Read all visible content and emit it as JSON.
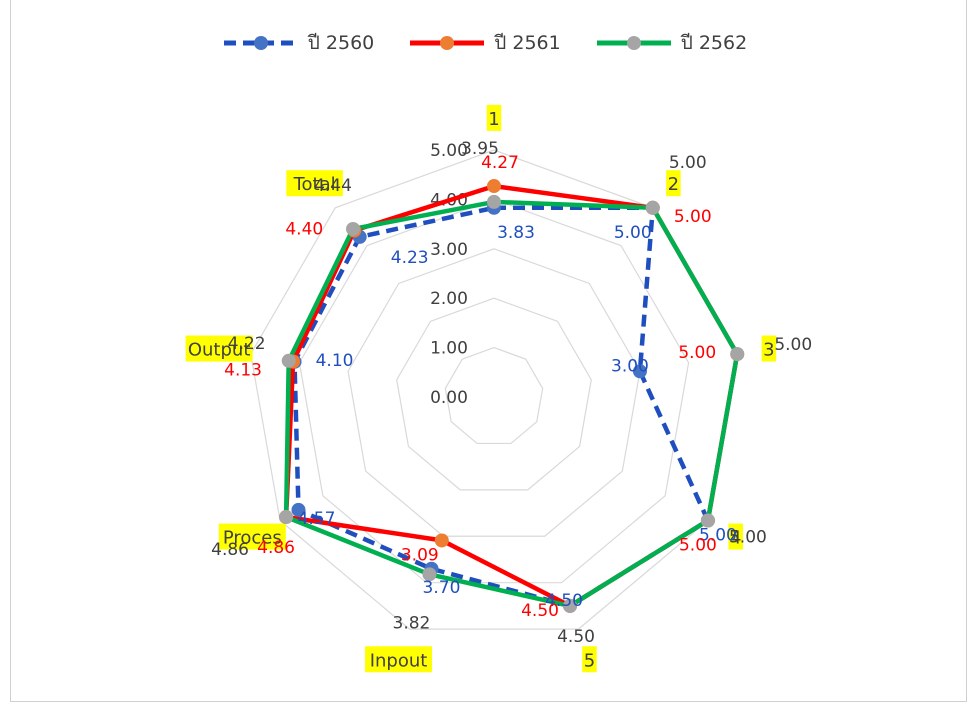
{
  "chart_data": {
    "type": "radar",
    "categories": [
      "1",
      "2",
      "3",
      "4",
      "5",
      "Inpout",
      "Proces",
      "Output",
      "Total"
    ],
    "rlim": [
      0,
      5
    ],
    "ticks": [
      "0.00",
      "1.00",
      "2.00",
      "3.00",
      "4.00",
      "5.00"
    ],
    "legend_position": "top",
    "series": [
      {
        "name": "ปี 2560",
        "color": "#1f4fbf",
        "style": "dashed",
        "values": [
          3.83,
          5.0,
          3.0,
          5.0,
          4.5,
          3.7,
          4.57,
          4.1,
          4.23
        ],
        "labels": [
          "3.83",
          "5.00",
          "3.00",
          "5.00",
          "4.50",
          "3.70",
          "4.57",
          "4.10",
          "4.23"
        ]
      },
      {
        "name": "ปี 2561",
        "color": "#ff0000",
        "style": "solid",
        "values": [
          4.27,
          5.0,
          5.0,
          5.0,
          4.5,
          3.09,
          4.86,
          4.13,
          4.4
        ],
        "labels": [
          "4.27",
          "5.00",
          "5.00",
          "5.00",
          "4.50",
          "3.09",
          "4.86",
          "4.13",
          "4.40"
        ]
      },
      {
        "name": "ปี 2562",
        "color": "#00b050",
        "style": "solid",
        "values": [
          3.95,
          5.0,
          5.0,
          5.0,
          4.5,
          3.82,
          4.86,
          4.22,
          4.44
        ],
        "labels": [
          "3.95",
          "5.00",
          "5.00",
          "5.00",
          "4.50",
          "3.82",
          "4.86",
          "4.22",
          "4.44"
        ]
      }
    ]
  }
}
